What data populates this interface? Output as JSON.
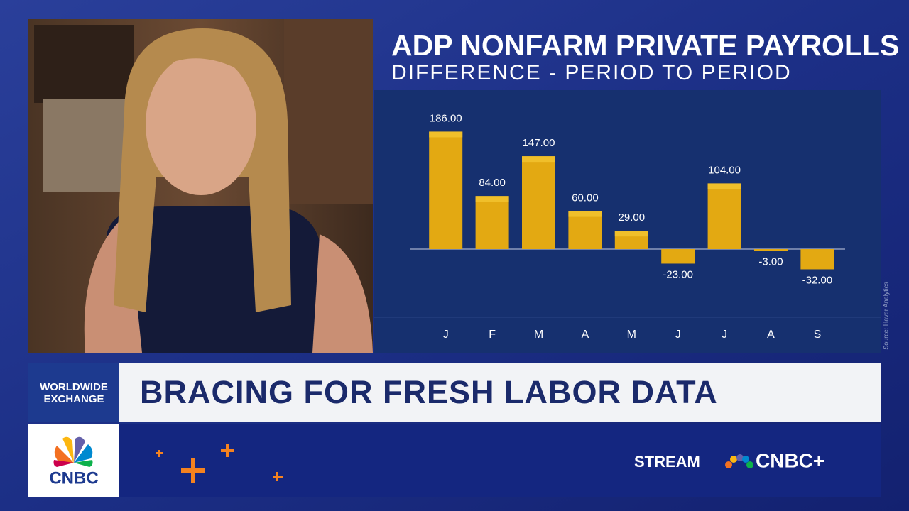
{
  "chart_data": {
    "type": "bar",
    "title": "ADP NONFARM PRIVATE PAYROLLS",
    "subtitle": "DIFFERENCE - PERIOD TO PERIOD",
    "source": "Source: Haver Analytics",
    "categories": [
      "J",
      "F",
      "M",
      "A",
      "M",
      "J",
      "J",
      "A",
      "S"
    ],
    "values": [
      186,
      84,
      147,
      60,
      29,
      -23,
      104,
      -3,
      -32
    ],
    "value_labels": [
      "186.00",
      "84.00",
      "147.00",
      "60.00",
      "29.00",
      "-23.00",
      "104.00",
      "-3.00",
      "-32.00"
    ],
    "color": "#e3a912"
  },
  "broadcast": {
    "show": [
      "WORLDWIDE",
      "EXCHANGE"
    ],
    "headline": "BRACING FOR FRESH LABOR DATA",
    "network": "CNBC",
    "stream": "STREAM",
    "stream_brand": "CNBC+"
  }
}
